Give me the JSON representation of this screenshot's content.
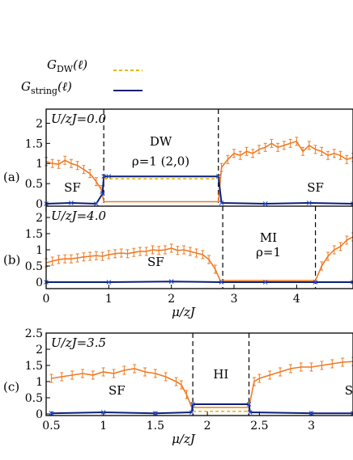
{
  "legend": {
    "items": [
      {
        "label": "G",
        "sub": "DW",
        "arg": "(ℓ)",
        "color": "#e8b800",
        "style": "dashed"
      },
      {
        "label": "G",
        "sub": "string",
        "arg": "(ℓ)",
        "color": "#0b1f7a",
        "style": "solid"
      }
    ]
  },
  "chart_data": [
    {
      "type": "line",
      "panel_label": "(a)",
      "param_label": "U/zJ=0.0",
      "xlim": [
        0,
        4.9
      ],
      "ylim": [
        -0.2,
        2.35
      ],
      "yticks": [
        0,
        0.5,
        1,
        1.5,
        2
      ],
      "ytick_labels": [
        "0",
        "0.5",
        "1",
        "1.5",
        "2"
      ],
      "xtick_labels_shown": false,
      "phase_boundaries": [
        0.92,
        2.75
      ],
      "region_labels": [
        {
          "text": "SF",
          "x": 0.42,
          "y": 0.3
        },
        {
          "text": "DW",
          "x": 1.83,
          "y": 1.45
        },
        {
          "text": "ρ=1 (2,0)",
          "x": 1.83,
          "y": 0.95
        },
        {
          "text": "SF",
          "x": 4.3,
          "y": 0.3
        }
      ],
      "series": [
        {
          "name": "",
          "color": "#f07a22",
          "x": [
            0,
            0.1,
            0.2,
            0.3,
            0.4,
            0.5,
            0.6,
            0.7,
            0.8,
            0.88,
            0.92,
            2.75,
            2.8,
            2.9,
            3.0,
            3.1,
            3.2,
            3.3,
            3.4,
            3.5,
            3.6,
            3.7,
            3.8,
            3.9,
            4.0,
            4.1,
            4.2,
            4.3,
            4.4,
            4.5,
            4.6,
            4.7,
            4.8,
            4.9
          ],
          "y": [
            1.05,
            1.0,
            0.98,
            1.08,
            1.0,
            0.95,
            0.85,
            0.75,
            0.55,
            0.35,
            0.05,
            0.05,
            0.9,
            1.1,
            1.25,
            1.2,
            1.3,
            1.25,
            1.35,
            1.4,
            1.5,
            1.4,
            1.45,
            1.5,
            1.55,
            1.3,
            1.45,
            1.35,
            1.3,
            1.2,
            1.25,
            1.2,
            1.1,
            1.15
          ]
        },
        {
          "name": "",
          "color": "#0b1f7a",
          "x": [
            0,
            0.4,
            0.8,
            0.9,
            0.92,
            1.0,
            2.75,
            2.8,
            3.5,
            4.2,
            4.9
          ],
          "y": [
            0.0,
            0.02,
            0.0,
            0.25,
            0.68,
            0.68,
            0.68,
            0.02,
            0.0,
            0.02,
            0.0
          ]
        },
        {
          "name": "",
          "color": "#e8b800",
          "x": [
            0.92,
            1.0,
            2.75
          ],
          "y": [
            0.62,
            0.62,
            0.62
          ]
        }
      ]
    },
    {
      "type": "line",
      "panel_label": "(b)",
      "param_label": "U/zJ=4.0",
      "xlim": [
        0,
        4.9
      ],
      "ylim": [
        -0.2,
        2.35
      ],
      "yticks": [
        0,
        0.5,
        1,
        1.5,
        2
      ],
      "ytick_labels": [
        "0",
        "0.5",
        "1",
        "1.5",
        "2"
      ],
      "xticks": [
        0,
        1,
        2,
        3,
        4
      ],
      "xtick_labels": [
        "0",
        "1",
        "2",
        "3",
        "4"
      ],
      "xlabel": "μ/zJ",
      "phase_boundaries": [
        2.82,
        4.3
      ],
      "region_labels": [
        {
          "text": "SF",
          "x": 1.75,
          "y": 0.5
        },
        {
          "text": "MI",
          "x": 3.55,
          "y": 1.25
        },
        {
          "text": "ρ=1",
          "x": 3.55,
          "y": 0.8
        }
      ],
      "series": [
        {
          "name": "",
          "color": "#f07a22",
          "x": [
            0,
            0.1,
            0.2,
            0.3,
            0.4,
            0.5,
            0.6,
            0.7,
            0.8,
            0.9,
            1.0,
            1.1,
            1.2,
            1.3,
            1.4,
            1.5,
            1.6,
            1.7,
            1.8,
            1.9,
            2.0,
            2.1,
            2.2,
            2.3,
            2.4,
            2.5,
            2.6,
            2.7,
            2.78,
            4.3,
            4.4,
            4.5,
            4.6,
            4.7,
            4.8,
            4.9
          ],
          "y": [
            0.6,
            0.65,
            0.7,
            0.72,
            0.72,
            0.75,
            0.78,
            0.8,
            0.82,
            0.8,
            0.85,
            0.88,
            0.9,
            0.88,
            0.92,
            0.95,
            0.95,
            1.0,
            0.98,
            1.0,
            1.05,
            0.98,
            1.0,
            0.95,
            0.9,
            0.85,
            0.7,
            0.4,
            0.05,
            0.05,
            0.5,
            0.8,
            1.0,
            1.1,
            1.3,
            1.4
          ]
        },
        {
          "name": "",
          "color": "#0b1f7a",
          "x": [
            0,
            1,
            2,
            2.8,
            3.5,
            4.3,
            4.9
          ],
          "y": [
            0.0,
            0.0,
            0.02,
            0.0,
            0.0,
            0.0,
            0.0
          ]
        }
      ]
    },
    {
      "type": "line",
      "panel_label": "(c)",
      "param_label": "U/zJ=3.5",
      "xlim": [
        0.45,
        3.4
      ],
      "ylim": [
        -0.05,
        2.5
      ],
      "yticks": [
        0,
        0.5,
        1,
        1.5,
        2,
        2.5
      ],
      "ytick_labels": [
        "0",
        "0.5",
        "1",
        "1.5",
        "2",
        "2.5"
      ],
      "xticks": [
        0.5,
        1,
        1.5,
        2,
        2.5,
        3
      ],
      "xtick_labels": [
        "0.5",
        "1",
        "1.5",
        "2",
        "2.5",
        "3"
      ],
      "xlabel": "μ/zJ",
      "phase_boundaries": [
        1.86,
        2.4
      ],
      "region_labels": [
        {
          "text": "SF",
          "x": 1.13,
          "y": 0.6
        },
        {
          "text": "HI",
          "x": 2.13,
          "y": 1.1
        },
        {
          "text": "S",
          "x": 3.36,
          "y": 0.6
        }
      ],
      "series": [
        {
          "name": "",
          "color": "#f07a22",
          "x": [
            0.5,
            0.6,
            0.7,
            0.8,
            0.9,
            1.0,
            1.1,
            1.2,
            1.3,
            1.4,
            1.5,
            1.6,
            1.7,
            1.75,
            1.8,
            1.85,
            2.4,
            2.45,
            2.5,
            2.6,
            2.7,
            2.8,
            2.9,
            3.0,
            3.1,
            3.2,
            3.3,
            3.4
          ],
          "y": [
            1.1,
            1.15,
            1.2,
            1.25,
            1.2,
            1.3,
            1.25,
            1.35,
            1.4,
            1.3,
            1.25,
            1.15,
            1.0,
            0.9,
            0.6,
            0.2,
            0.2,
            1.0,
            1.1,
            1.2,
            1.3,
            1.4,
            1.45,
            1.45,
            1.5,
            1.55,
            1.6,
            1.62
          ]
        },
        {
          "name": "",
          "color": "#0b1f7a",
          "x": [
            0.5,
            1.0,
            1.5,
            1.85,
            1.86,
            2.4,
            2.41,
            3.0,
            3.4
          ],
          "y": [
            0.02,
            0.05,
            0.02,
            0.05,
            0.3,
            0.3,
            0.05,
            0.02,
            0.02
          ]
        },
        {
          "name": "",
          "color": "#e8b800",
          "x": [
            1.86,
            2.4
          ],
          "y": [
            0.08,
            0.08
          ]
        }
      ]
    }
  ]
}
